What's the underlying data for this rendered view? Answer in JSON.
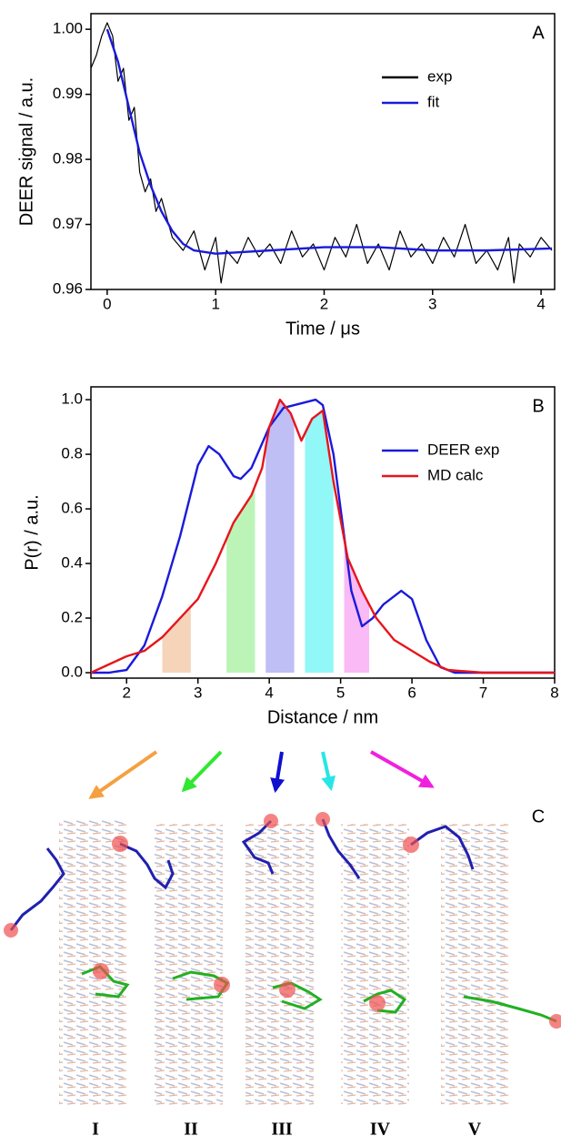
{
  "chart_data": [
    {
      "type": "line",
      "panel_label": "A",
      "xlabel": "Time / μs",
      "ylabel": "DEER signal / a.u.",
      "xlim": [
        -0.15,
        4.125
      ],
      "xticks": [
        0,
        1,
        2,
        3,
        4
      ],
      "ylim": [
        0.96,
        1.0024
      ],
      "yticks": [
        {
          "value": 0.96,
          "label": "0.96"
        },
        {
          "value": 0.97,
          "label": "0.97"
        },
        {
          "value": 0.98,
          "label": "0.98"
        },
        {
          "value": 0.99,
          "label": "0.99"
        },
        {
          "value": 1.0,
          "label": "1.00"
        }
      ],
      "legend": "upper right",
      "series": [
        {
          "name": "exp",
          "color": "#000000",
          "x": [
            -0.15,
            -0.1,
            -0.05,
            0,
            0.05,
            0.1,
            0.15,
            0.2,
            0.25,
            0.3,
            0.35,
            0.4,
            0.45,
            0.5,
            0.6,
            0.7,
            0.8,
            0.9,
            1.0,
            1.05,
            1.1,
            1.2,
            1.3,
            1.4,
            1.5,
            1.6,
            1.7,
            1.8,
            1.9,
            2.0,
            2.1,
            2.2,
            2.3,
            2.4,
            2.5,
            2.6,
            2.7,
            2.8,
            2.9,
            3.0,
            3.1,
            3.2,
            3.3,
            3.4,
            3.5,
            3.6,
            3.7,
            3.75,
            3.8,
            3.9,
            4.0,
            4.1
          ],
          "values": [
            0.994,
            0.996,
            0.999,
            1.001,
            0.999,
            0.992,
            0.994,
            0.986,
            0.988,
            0.978,
            0.975,
            0.977,
            0.972,
            0.974,
            0.968,
            0.966,
            0.969,
            0.963,
            0.968,
            0.961,
            0.966,
            0.964,
            0.968,
            0.965,
            0.967,
            0.964,
            0.969,
            0.965,
            0.967,
            0.963,
            0.968,
            0.965,
            0.97,
            0.964,
            0.967,
            0.963,
            0.969,
            0.965,
            0.967,
            0.964,
            0.968,
            0.965,
            0.97,
            0.964,
            0.966,
            0.963,
            0.968,
            0.961,
            0.967,
            0.965,
            0.968,
            0.966
          ]
        },
        {
          "name": "fit",
          "color": "#1a1adb",
          "x": [
            0,
            0.1,
            0.2,
            0.3,
            0.4,
            0.5,
            0.6,
            0.7,
            0.8,
            1.0,
            1.5,
            2.0,
            2.5,
            3.0,
            3.5,
            4.1
          ],
          "values": [
            1.0,
            0.995,
            0.988,
            0.981,
            0.976,
            0.972,
            0.969,
            0.967,
            0.966,
            0.9655,
            0.966,
            0.9665,
            0.9665,
            0.966,
            0.966,
            0.9663
          ]
        }
      ]
    },
    {
      "type": "line",
      "panel_label": "B",
      "xlabel": "Distance / nm",
      "ylabel": "P(r)  / a.u.",
      "xlim": [
        1.5,
        8
      ],
      "xticks": [
        2,
        3,
        4,
        5,
        6,
        7,
        8
      ],
      "ylim": [
        -0.02,
        1.047
      ],
      "yticks": [
        {
          "value": 0,
          "label": "0.0"
        },
        {
          "value": 0.2,
          "label": "0.2"
        },
        {
          "value": 0.4,
          "label": "0.4"
        },
        {
          "value": 0.6,
          "label": "0.6"
        },
        {
          "value": 0.8,
          "label": "0.8"
        },
        {
          "value": 1.0,
          "label": "1.0"
        }
      ],
      "legend": "upper right",
      "series": [
        {
          "name": "DEER exp",
          "color": "#1a1adb",
          "x": [
            1.5,
            1.75,
            2,
            2.25,
            2.5,
            2.75,
            3,
            3.15,
            3.3,
            3.5,
            3.6,
            3.75,
            4,
            4.2,
            4.35,
            4.5,
            4.65,
            4.75,
            4.9,
            5,
            5.15,
            5.3,
            5.45,
            5.6,
            5.85,
            6,
            6.2,
            6.4,
            6.6,
            8
          ],
          "values": [
            0,
            0,
            0.01,
            0.1,
            0.28,
            0.5,
            0.76,
            0.83,
            0.8,
            0.72,
            0.71,
            0.75,
            0.9,
            0.97,
            0.98,
            0.99,
            1.0,
            0.98,
            0.8,
            0.6,
            0.3,
            0.17,
            0.2,
            0.25,
            0.3,
            0.27,
            0.12,
            0.02,
            0,
            0
          ]
        },
        {
          "name": "MD calc",
          "color": "#e8141c",
          "x": [
            1.5,
            1.75,
            2,
            2.25,
            2.5,
            2.75,
            3,
            3.25,
            3.5,
            3.75,
            3.9,
            4,
            4.15,
            4.3,
            4.45,
            4.6,
            4.75,
            4.9,
            5.1,
            5.3,
            5.5,
            5.75,
            6,
            6.25,
            6.5,
            7,
            8
          ],
          "values": [
            0,
            0.03,
            0.06,
            0.08,
            0.13,
            0.2,
            0.27,
            0.4,
            0.55,
            0.65,
            0.75,
            0.9,
            1.0,
            0.95,
            0.85,
            0.93,
            0.96,
            0.7,
            0.42,
            0.3,
            0.2,
            0.12,
            0.08,
            0.04,
            0.01,
            0,
            0
          ]
        }
      ],
      "bands": [
        {
          "x": [
            2.5,
            2.9
          ],
          "color": "#f3c6a3"
        },
        {
          "x": [
            3.4,
            3.8
          ],
          "color": "#a6f0a0"
        },
        {
          "x": [
            3.95,
            4.35
          ],
          "color": "#a9a9f2"
        },
        {
          "x": [
            4.5,
            4.9
          ],
          "color": "#6ef4f4"
        },
        {
          "x": [
            5.05,
            5.4
          ],
          "color": "#f7a3f2"
        }
      ]
    }
  ],
  "panel_c": {
    "label": "C",
    "structures": [
      "I",
      "II",
      "III",
      "IV",
      "V"
    ]
  }
}
